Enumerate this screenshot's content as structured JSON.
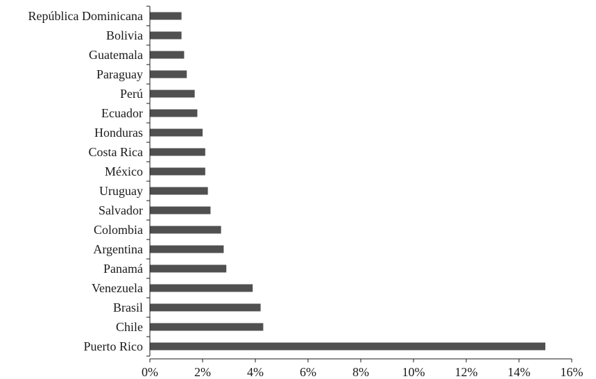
{
  "chart_data": {
    "type": "bar",
    "orientation": "horizontal",
    "categories": [
      "República Dominicana",
      "Bolivia",
      "Guatemala",
      "Paraguay",
      "Perú",
      "Ecuador",
      "Honduras",
      "Costa Rica",
      "México",
      "Uruguay",
      "Salvador",
      "Colombia",
      "Argentina",
      "Panamá",
      "Venezuela",
      "Brasil",
      "Chile",
      "Puerto Rico"
    ],
    "values": [
      1.2,
      1.2,
      1.3,
      1.4,
      1.7,
      1.8,
      2.0,
      2.1,
      2.1,
      2.2,
      2.3,
      2.7,
      2.8,
      2.9,
      3.9,
      4.2,
      4.3,
      15.0
    ],
    "xlim": [
      0,
      16
    ],
    "xticks": [
      0,
      2,
      4,
      6,
      8,
      10,
      12,
      14,
      16
    ],
    "xtick_labels": [
      "0%",
      "2%",
      "4%",
      "6%",
      "8%",
      "10%",
      "12%",
      "14%",
      "16%"
    ],
    "title": "",
    "xlabel": "",
    "ylabel": "",
    "bar_color": "#505050",
    "grid": false,
    "legend": "none"
  }
}
